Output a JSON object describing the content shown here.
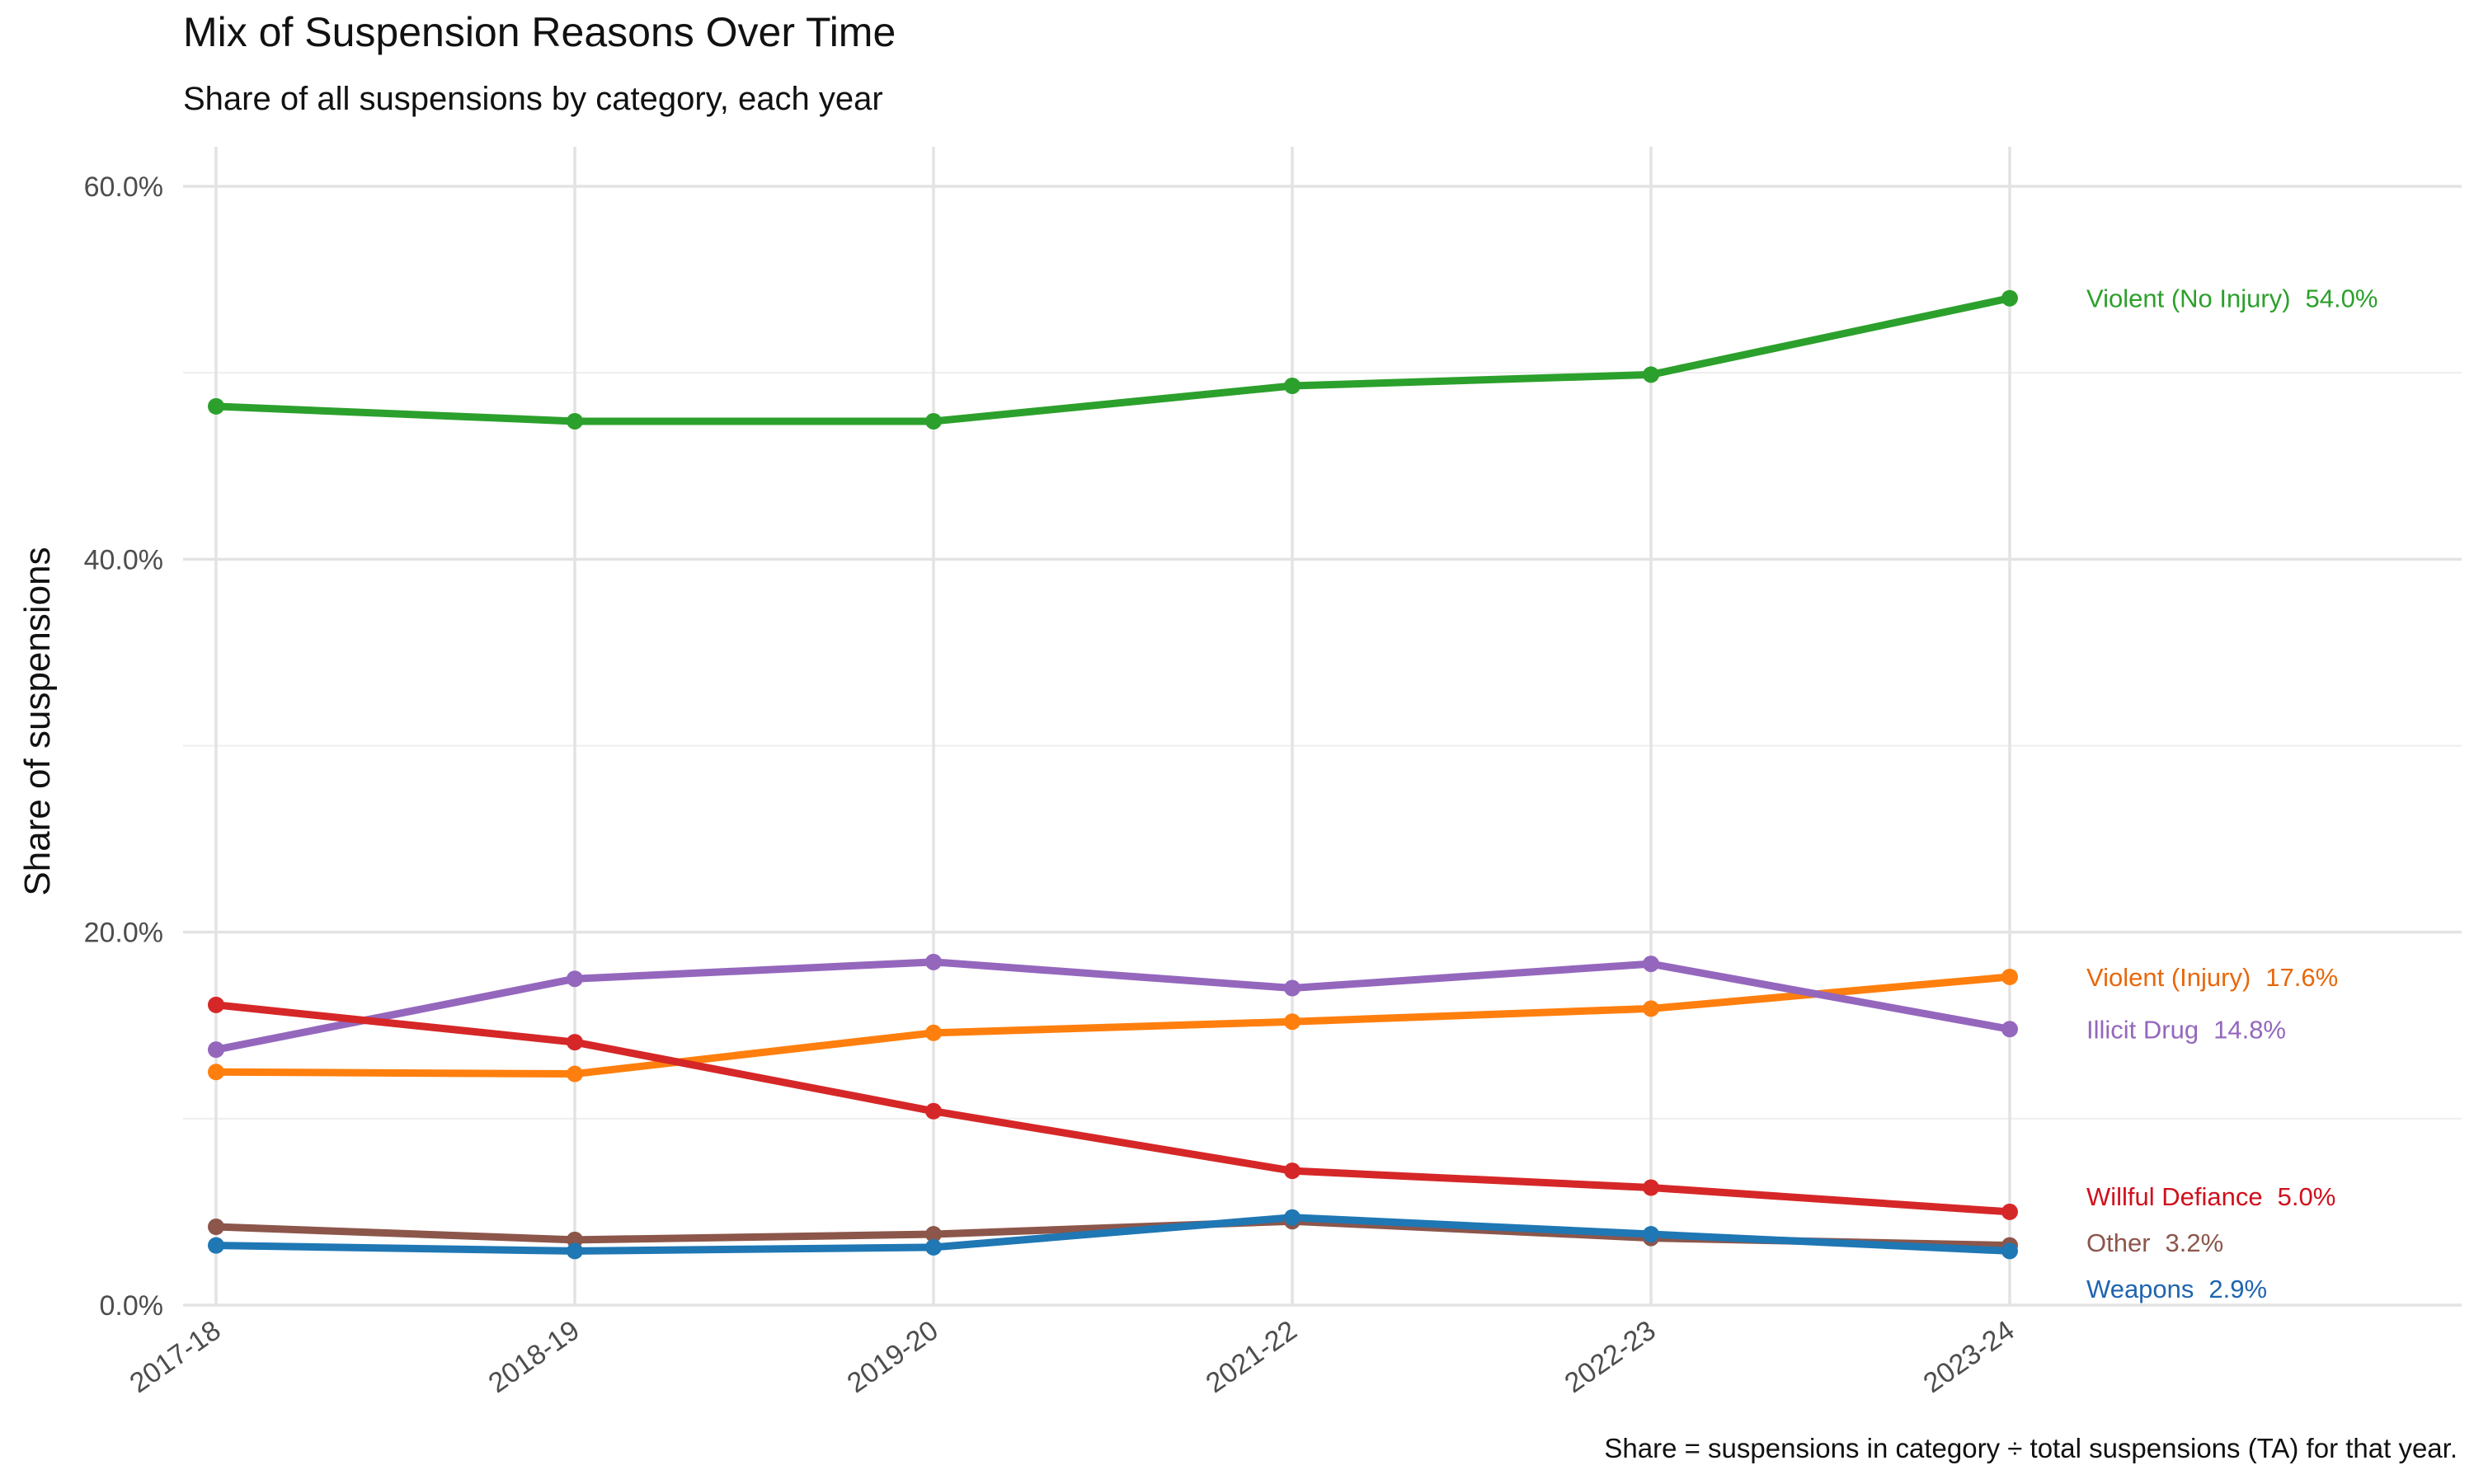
{
  "chart_data": {
    "type": "line",
    "title": "Mix of Suspension Reasons Over Time",
    "subtitle": "Share of all suspensions by category, each year",
    "xlabel": "",
    "ylabel": "Share of suspensions",
    "caption": "Share = suspensions in category ÷ total suspensions (TA) for that year.",
    "categories": [
      "2017-18",
      "2018-19",
      "2019-20",
      "2021-22",
      "2022-23",
      "2023-24"
    ],
    "ylim": [
      0,
      60
    ],
    "yticks": [
      0,
      20,
      40,
      60
    ],
    "ytick_labels": [
      "0.0%",
      "20.0%",
      "40.0%",
      "60.0%"
    ],
    "grid": true,
    "legend": "direct labels at line ends",
    "series": [
      {
        "name": "Violent (No Injury)",
        "end_label": "54.0%",
        "color": "#2ca02c",
        "values": [
          48.2,
          47.4,
          47.4,
          49.3,
          49.9,
          54.0
        ]
      },
      {
        "name": "Violent (Injury)",
        "end_label": "17.6%",
        "color": "#ff7f0e",
        "values": [
          12.5,
          12.4,
          14.6,
          15.2,
          15.9,
          17.6
        ]
      },
      {
        "name": "Illicit Drug",
        "end_label": "14.8%",
        "color": "#9467bd",
        "values": [
          13.7,
          17.5,
          18.4,
          17.0,
          18.3,
          14.8
        ]
      },
      {
        "name": "Willful Defiance",
        "end_label": "5.0%",
        "color": "#d62728",
        "values": [
          16.1,
          14.1,
          10.4,
          7.2,
          6.3,
          5.0
        ]
      },
      {
        "name": "Other",
        "end_label": "3.2%",
        "color": "#8c564b",
        "values": [
          4.2,
          3.5,
          3.8,
          4.5,
          3.6,
          3.2
        ]
      },
      {
        "name": "Weapons",
        "end_label": "2.9%",
        "color": "#1f77b4",
        "values": [
          3.2,
          2.9,
          3.1,
          4.7,
          3.8,
          2.9
        ]
      }
    ],
    "label_colors": [
      "#2ca02c",
      "#e8680c",
      "#9467bd",
      "#d0101c",
      "#8c564b",
      "#1f64b0"
    ]
  }
}
